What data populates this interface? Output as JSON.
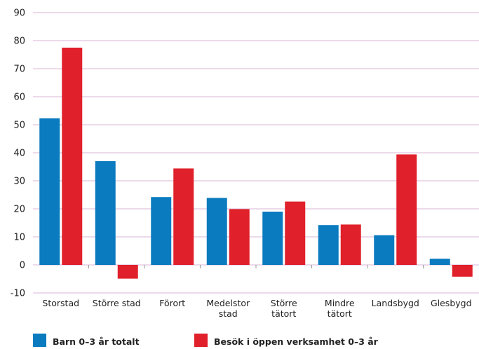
{
  "chart_data": {
    "type": "bar",
    "categories": [
      [
        "Storstad"
      ],
      [
        "Större stad"
      ],
      [
        "Förort"
      ],
      [
        "Medelstor",
        "stad"
      ],
      [
        "Större",
        "tätort"
      ],
      [
        "Mindre",
        "tätort"
      ],
      [
        "Landsbygd"
      ],
      [
        "Glesbygd"
      ]
    ],
    "series": [
      {
        "name": "Barn 0–3 år totalt",
        "color": "#0a7bbf",
        "values": [
          52.3,
          37.0,
          24.2,
          23.9,
          19.0,
          14.2,
          10.6,
          2.2
        ]
      },
      {
        "name": "Besök i öppen verksamhet 0–3 år",
        "color": "#e0202a",
        "values": [
          77.5,
          -4.9,
          34.4,
          19.9,
          22.6,
          14.4,
          39.4,
          -4.2
        ]
      }
    ],
    "ylim": [
      -10,
      90
    ],
    "yticks": [
      -10,
      0,
      10,
      20,
      30,
      40,
      50,
      60,
      70,
      80,
      90
    ],
    "grid": true,
    "gridColor": "#d9b6d6",
    "legend": "bottom"
  }
}
